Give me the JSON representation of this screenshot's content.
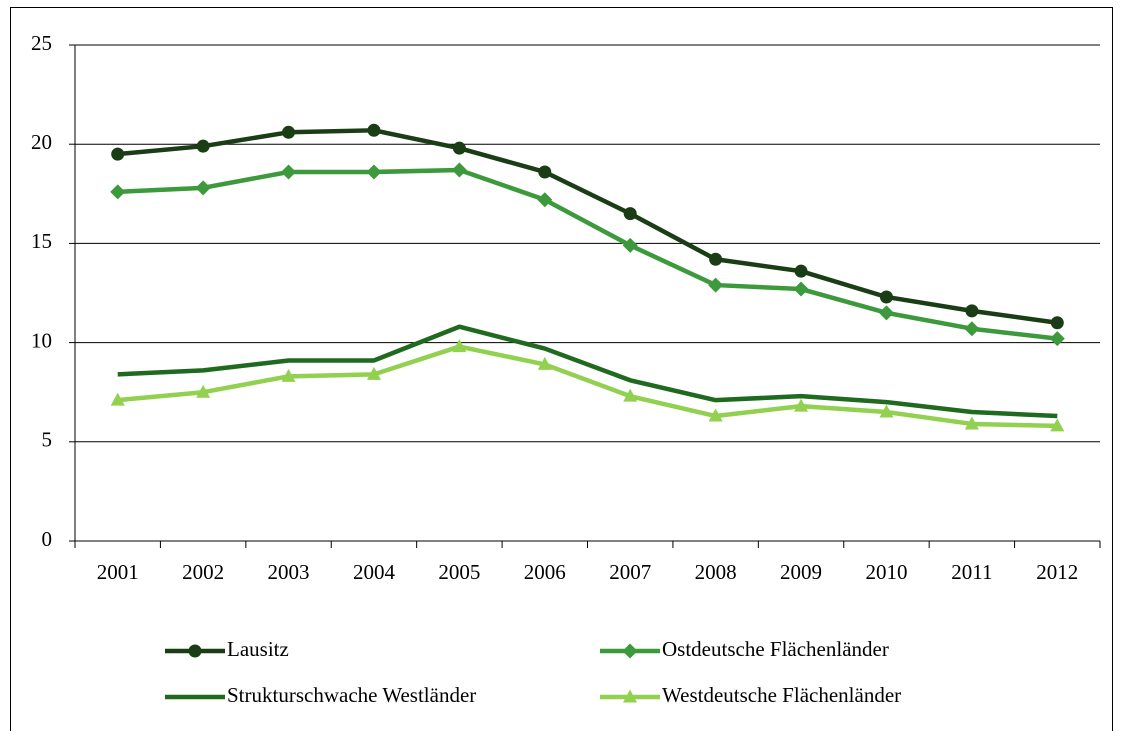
{
  "chart_data": {
    "type": "line",
    "categories": [
      "2001",
      "2002",
      "2003",
      "2004",
      "2005",
      "2006",
      "2007",
      "2008",
      "2009",
      "2010",
      "2011",
      "2012"
    ],
    "series": [
      {
        "name": "Lausitz",
        "color": "#1b3d15",
        "marker": "circle",
        "values": [
          19.5,
          19.9,
          20.6,
          20.7,
          19.8,
          18.6,
          16.5,
          14.2,
          13.6,
          12.3,
          11.6,
          11.0
        ]
      },
      {
        "name": "Ostdeutsche Flächenländer",
        "color": "#3c9a3c",
        "marker": "diamond",
        "values": [
          17.6,
          17.8,
          18.6,
          18.6,
          18.7,
          17.2,
          14.9,
          12.9,
          12.7,
          11.5,
          10.7,
          10.2
        ]
      },
      {
        "name": "Strukturschwache Westländer",
        "color": "#1f6a1f",
        "marker": "none",
        "values": [
          8.4,
          8.6,
          9.1,
          9.1,
          10.8,
          9.7,
          8.1,
          7.1,
          7.3,
          7.0,
          6.5,
          6.3
        ]
      },
      {
        "name": "Westdeutsche Flächenländer",
        "color": "#92d050",
        "marker": "triangle",
        "values": [
          7.1,
          7.5,
          8.3,
          8.4,
          9.8,
          8.9,
          7.3,
          6.3,
          6.8,
          6.5,
          5.9,
          5.8
        ]
      }
    ],
    "ylim": [
      0,
      25
    ],
    "yticks": [
      0,
      5,
      10,
      15,
      20,
      25
    ],
    "grid": true,
    "legend": "bottom"
  }
}
